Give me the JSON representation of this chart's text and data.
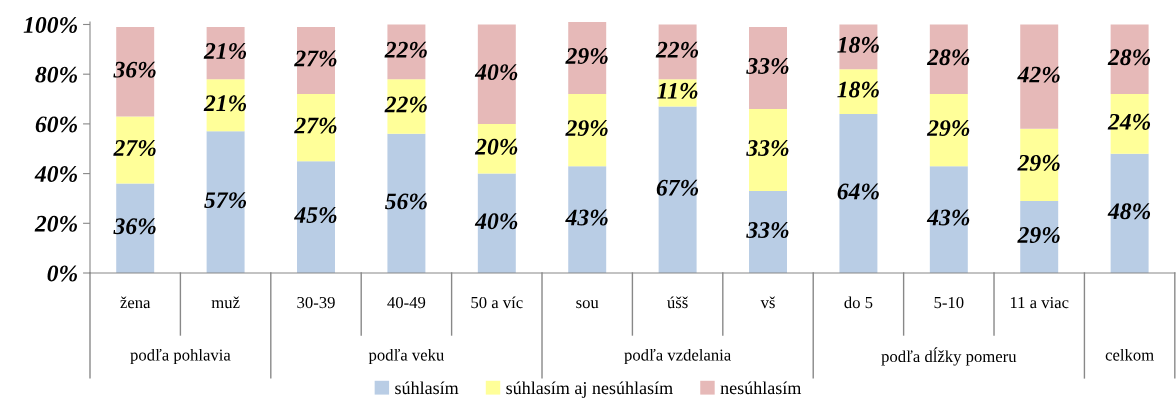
{
  "chart_data": {
    "type": "bar",
    "stacked": true,
    "categories": [
      "žena",
      "muž",
      "30-39",
      "40-49",
      "50 a víc",
      "sou",
      "úšš",
      "vš",
      "do 5",
      "5-10",
      "11 a viac",
      null
    ],
    "annotations": [
      "podľa pohlavia",
      "podľa veku",
      "podľa vzdelania",
      "podľa dĺžky pomeru",
      "celkom"
    ],
    "series": [
      {
        "name": "súhlasím",
        "color": "#b9cde5",
        "values": [
          36,
          57,
          45,
          56,
          40,
          43,
          67,
          33,
          64,
          43,
          29,
          48
        ],
        "value_labels": [
          "36%",
          "57%",
          "45%",
          "56%",
          "40%",
          "43%",
          "67%",
          "33%",
          "64%",
          "43%",
          "29%",
          "48%"
        ]
      },
      {
        "name": "súhlasím aj nesúhlasím",
        "color": "#ffff99",
        "values": [
          27,
          21,
          27,
          22,
          20,
          29,
          11,
          33,
          18,
          29,
          29,
          24
        ],
        "value_labels": [
          "27%",
          "21%",
          "27%",
          "22%",
          "20%",
          "29%",
          "11%",
          "33%",
          "18%",
          "29%",
          "29%",
          "24%"
        ]
      },
      {
        "name": "nesúhlasím",
        "color": "#e6b9b8",
        "values": [
          36,
          21,
          27,
          22,
          40,
          29,
          22,
          33,
          18,
          28,
          42,
          28
        ],
        "value_labels": [
          "36%",
          "21%",
          "27%",
          "22%",
          "40%",
          "29%",
          "22%",
          "33%",
          "18%",
          "28%",
          "42%",
          "28%"
        ]
      }
    ],
    "ylim": [
      0,
      101
    ],
    "yticks": [
      {
        "value": 0,
        "label": "0%"
      },
      {
        "value": 20,
        "label": "20%"
      },
      {
        "value": 40,
        "label": "40%"
      },
      {
        "value": 60,
        "label": "60%"
      },
      {
        "value": 80,
        "label": "80%"
      },
      {
        "value": 100,
        "label": "100%"
      }
    ],
    "grid": false,
    "legend": "bottom"
  }
}
